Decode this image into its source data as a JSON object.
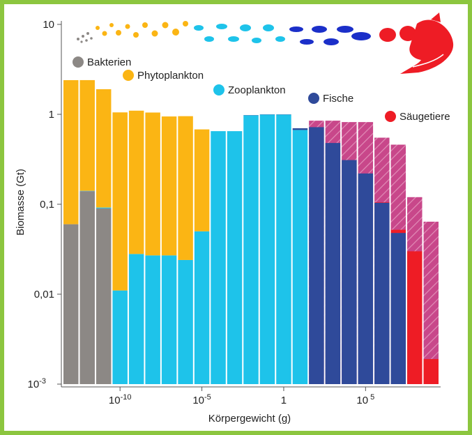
{
  "chart_data": {
    "type": "bar",
    "xlabel": "Körpergewicht (g)",
    "ylabel": "Biomasse (Gt)",
    "y_scale": "log",
    "ylim": [
      0.001,
      10
    ],
    "x_scale": "log",
    "x_ticks": [
      {
        "log10": -10,
        "label": "10",
        "sup": "-10"
      },
      {
        "log10": -5,
        "label": "10",
        "sup": "-5"
      },
      {
        "log10": 0,
        "label": "1",
        "sup": ""
      },
      {
        "log10": 5,
        "label": "10",
        "sup": " 5"
      }
    ],
    "y_ticks": [
      {
        "value": 10,
        "label": "10"
      },
      {
        "value": 1,
        "label": "1"
      },
      {
        "value": 0.1,
        "label": "0,1"
      },
      {
        "value": 0.01,
        "label": "0,01"
      },
      {
        "value": 0.001,
        "label": "10",
        "sup": "-3"
      }
    ],
    "legend": [
      {
        "name": "Bakterien",
        "color": "#8c8885"
      },
      {
        "name": "Phytoplankton",
        "color": "#fbb514"
      },
      {
        "name": "Zooplankton",
        "color": "#1ec3ea"
      },
      {
        "name": "Fische",
        "color": "#2f4a9a"
      },
      {
        "name": "Säugetiere",
        "color": "#ee1c25"
      }
    ],
    "colors": {
      "bacteria": "#8c8885",
      "phytoplankton": "#fbb514",
      "zooplankton": "#1ec3ea",
      "fish": "#2f4a9a",
      "mammals": "#ee1c25",
      "historical_hatch": "#c8478a",
      "frame": "#8cc63f"
    },
    "bin_log10_start": -13.5,
    "bin_width_log10": 1,
    "bins": [
      {
        "total": 2.4,
        "layers": {
          "bacteria": 0.06,
          "phytoplankton": 2.34
        }
      },
      {
        "total": 2.4,
        "layers": {
          "zooplankton": 0.0012,
          "bacteria": 0.14,
          "phytoplankton": 2.26
        }
      },
      {
        "total": 1.9,
        "layers": {
          "zooplankton": 0.002,
          "bacteria": 0.09,
          "phytoplankton": 1.81
        }
      },
      {
        "total": 1.05,
        "layers": {
          "zooplankton": 0.011,
          "phytoplankton": 1.04
        }
      },
      {
        "total": 1.1,
        "layers": {
          "zooplankton": 0.028,
          "phytoplankton": 1.07
        }
      },
      {
        "total": 1.05,
        "layers": {
          "zooplankton": 0.027,
          "phytoplankton": 1.02
        }
      },
      {
        "total": 0.95,
        "layers": {
          "zooplankton": 0.027,
          "phytoplankton": 0.92
        }
      },
      {
        "total": 0.95,
        "layers": {
          "zooplankton": 0.024,
          "phytoplankton": 0.93
        }
      },
      {
        "total": 0.68,
        "layers": {
          "zooplankton": 0.05,
          "phytoplankton": 0.63
        }
      },
      {
        "total": 0.65,
        "layers": {
          "zooplankton": 0.65
        }
      },
      {
        "total": 0.65,
        "layers": {
          "zooplankton": 0.65
        }
      },
      {
        "total": 0.98,
        "layers": {
          "fish": 0.006,
          "zooplankton": 0.974
        }
      },
      {
        "total": 1.0,
        "layers": {
          "fish": 0.006,
          "zooplankton": 0.994
        }
      },
      {
        "total": 1.0,
        "layers": {
          "fish": 0.006,
          "zooplankton": 0.994
        }
      },
      {
        "total": 0.7,
        "layers": {
          "fish": 0.03,
          "zooplankton": 0.67
        }
      },
      {
        "total": 0.72,
        "historical": 0.85,
        "layers": {
          "fish": 0.72
        }
      },
      {
        "total": 0.48,
        "historical": 0.85,
        "layers": {
          "fish": 0.48
        }
      },
      {
        "total": 0.31,
        "historical": 0.82,
        "layers": {
          "fish": 0.31
        }
      },
      {
        "total": 0.22,
        "historical": 0.82,
        "layers": {
          "fish": 0.22
        }
      },
      {
        "total": 0.105,
        "historical": 0.55,
        "layers": {
          "mammals": 0.0012,
          "fish": 0.104
        }
      },
      {
        "total": 0.052,
        "historical": 0.46,
        "layers": {
          "mammals": 0.004,
          "fish": 0.048
        }
      },
      {
        "total": 0.03,
        "historical": 0.12,
        "layers": {
          "mammals": 0.03
        }
      },
      {
        "total": 0.0019,
        "historical": 0.064,
        "layers": {
          "mammals": 0.0019
        }
      }
    ]
  }
}
